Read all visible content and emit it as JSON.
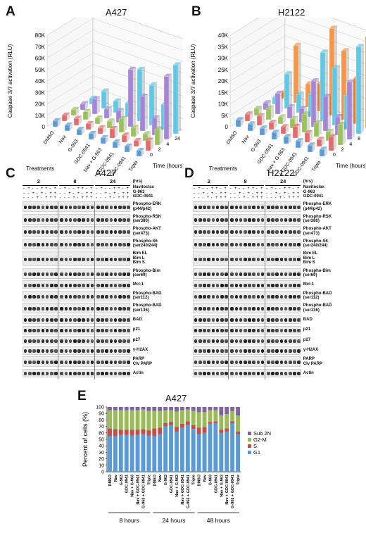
{
  "panels": {
    "A": {
      "letter": "A",
      "title": "A427",
      "ylabel": "Caspase 3/7 activation (RLU)",
      "yticks": [
        "0",
        "10K",
        "20K",
        "30K",
        "40K",
        "50K",
        "60K",
        "70K",
        "80K"
      ],
      "xlabel": "Treatments",
      "zlabel": "Time (hours)",
      "zticks": [
        "0",
        "2",
        "4",
        "24",
        "48"
      ]
    },
    "B": {
      "letter": "B",
      "title": "H2122",
      "ylabel": "Caspase 3/7 activation (RLU)",
      "yticks": [
        "0",
        "5K",
        "10K",
        "15K",
        "20K",
        "25K",
        "30K",
        "35K",
        "40K"
      ],
      "xlabel": "Treatments",
      "zlabel": "Time (hours)",
      "zticks": [
        "0",
        "2",
        "4",
        "8",
        "24",
        "48"
      ]
    },
    "C": {
      "letter": "C",
      "title": "A427"
    },
    "D": {
      "letter": "D",
      "title": "H2122"
    },
    "E": {
      "letter": "E",
      "title": "A427"
    }
  },
  "treatments": [
    "DMSO",
    "Nav",
    "G-963",
    "GDC-0941",
    "Nav + G-963",
    "Nav + GDC-0941",
    "G-963 + GDC-0941",
    "Triple"
  ],
  "blot": {
    "hrs_label": "(hrs)",
    "timepoints": [
      "2",
      "8",
      "24"
    ],
    "drug_rows": [
      {
        "name": "Navitoclax",
        "signs": [
          "-",
          "+",
          "-",
          "-",
          "+",
          "+",
          "-",
          "+"
        ]
      },
      {
        "name": "G-963",
        "signs": [
          "-",
          "-",
          "+",
          "-",
          "+",
          "-",
          "+",
          "+"
        ]
      },
      {
        "name": "GDC-0941",
        "signs": [
          "-",
          "-",
          "-",
          "+",
          "-",
          "+",
          "+",
          "+"
        ]
      }
    ],
    "proteins": [
      "Phospho-ERK\n(p44/p42)",
      "Phospho-RSK\n(ser380)",
      "Phospho-AKT\n(ser473)",
      "Phospho-S6\n(ser240/244)",
      "Bim EL\nBim L\nBim S",
      "Phospho-Bim\n(ser69)",
      "Mcl-1",
      "Phospho-BAD\n(ser112)",
      "Phospho-BAD\n(ser136)",
      "BAD",
      "p21",
      "p27",
      "γ-H2AX",
      "PARP\nClv PARP",
      "Actin"
    ]
  },
  "chart_data": [
    {
      "type": "bar",
      "title": "A427",
      "ylabel": "Caspase 3/7 activation (RLU)",
      "xlabel": "Treatments",
      "zlabel": "Time (hours)",
      "ylim": [
        0,
        80000
      ],
      "categories": [
        "DMSO",
        "Nav",
        "G-963",
        "GDC-0941",
        "Nav + G-963",
        "Nav + GDC-0941",
        "G-963 + GDC-0941",
        "Triple"
      ],
      "series": [
        {
          "name": "0",
          "values": [
            5000,
            5000,
            5000,
            5000,
            5000,
            5000,
            5000,
            5000
          ]
        },
        {
          "name": "2",
          "values": [
            5000,
            6000,
            5000,
            5000,
            8000,
            6000,
            5000,
            9000
          ]
        },
        {
          "name": "4",
          "values": [
            5000,
            7000,
            5000,
            6000,
            12000,
            8000,
            6000,
            14000
          ]
        },
        {
          "name": "24",
          "values": [
            5000,
            13000,
            8000,
            10000,
            50000,
            30000,
            15000,
            55000
          ]
        },
        {
          "name": "48",
          "values": [
            5000,
            15000,
            10000,
            12000,
            45000,
            35000,
            22000,
            60000
          ]
        }
      ]
    },
    {
      "type": "bar",
      "title": "H2122",
      "ylabel": "Caspase 3/7 activation (RLU)",
      "xlabel": "Treatments",
      "zlabel": "Time (hours)",
      "ylim": [
        0,
        40000
      ],
      "categories": [
        "DMSO",
        "Nav",
        "G-963",
        "GDC-0941",
        "Nav + G-963",
        "Nav + GDC-0941",
        "G-963 + GDC-0941",
        "Triple"
      ],
      "series": [
        {
          "name": "0",
          "values": [
            3000,
            3000,
            3000,
            3000,
            3000,
            3000,
            3000,
            3000
          ]
        },
        {
          "name": "2",
          "values": [
            3000,
            4000,
            3000,
            3000,
            5000,
            4000,
            3000,
            6000
          ]
        },
        {
          "name": "4",
          "values": [
            3000,
            5000,
            3000,
            4000,
            8000,
            6000,
            4000,
            9000
          ]
        },
        {
          "name": "8",
          "values": [
            3000,
            9000,
            5000,
            6000,
            20000,
            15000,
            8000,
            25000
          ]
        },
        {
          "name": "24",
          "values": [
            3000,
            15000,
            8000,
            10000,
            30000,
            25000,
            15000,
            38000
          ]
        },
        {
          "name": "48",
          "values": [
            3000,
            25000,
            10000,
            12000,
            38000,
            30000,
            20000,
            40000
          ]
        }
      ]
    },
    {
      "type": "bar",
      "stacked": true,
      "title": "A427",
      "ylabel": "Percent of cells (%)",
      "ylim": [
        0,
        100
      ],
      "yticks": [
        0,
        10,
        20,
        30,
        40,
        50,
        60,
        70,
        80,
        90,
        100
      ],
      "categories": [
        "DMSO",
        "Nav",
        "G-963",
        "GDC-0941",
        "Nav + G-963",
        "Nav + GDC-0941",
        "G-963 + GDC-0941",
        "Triple",
        "DMSO",
        "Nav",
        "G-963",
        "GDC-0941",
        "Nav + G-963",
        "Nav + GDC-0941",
        "G-963 + GDC-0941",
        "Triple",
        "DMSO",
        "Nav",
        "G-963",
        "GDC-0941",
        "Nav + G-963",
        "Nav + GDC-0941",
        "G-963 + GDC-0941",
        "Triple"
      ],
      "groups": [
        "8 hours",
        "24 hours",
        "48 hours"
      ],
      "series": [
        {
          "name": "G1",
          "color": "#5b9bd5",
          "values": [
            55,
            55,
            57,
            57,
            56,
            57,
            58,
            56,
            55,
            58,
            70,
            72,
            62,
            68,
            72,
            66,
            58,
            60,
            74,
            75,
            60,
            62,
            75,
            58
          ]
        },
        {
          "name": "S",
          "color": "#c0504d",
          "values": [
            12,
            11,
            8,
            8,
            9,
            8,
            8,
            8,
            12,
            10,
            5,
            5,
            7,
            6,
            6,
            6,
            10,
            9,
            3,
            3,
            5,
            5,
            3,
            4
          ]
        },
        {
          "name": "G2-M",
          "color": "#9bbb59",
          "values": [
            28,
            29,
            30,
            30,
            30,
            30,
            30,
            30,
            27,
            26,
            20,
            18,
            24,
            21,
            18,
            22,
            24,
            23,
            18,
            17,
            22,
            22,
            16,
            25
          ]
        },
        {
          "name": "Sub 2N",
          "color": "#8064a2",
          "values": [
            5,
            5,
            5,
            5,
            5,
            5,
            4,
            6,
            6,
            6,
            5,
            5,
            7,
            5,
            4,
            6,
            8,
            8,
            5,
            5,
            13,
            11,
            6,
            13
          ]
        }
      ]
    }
  ]
}
